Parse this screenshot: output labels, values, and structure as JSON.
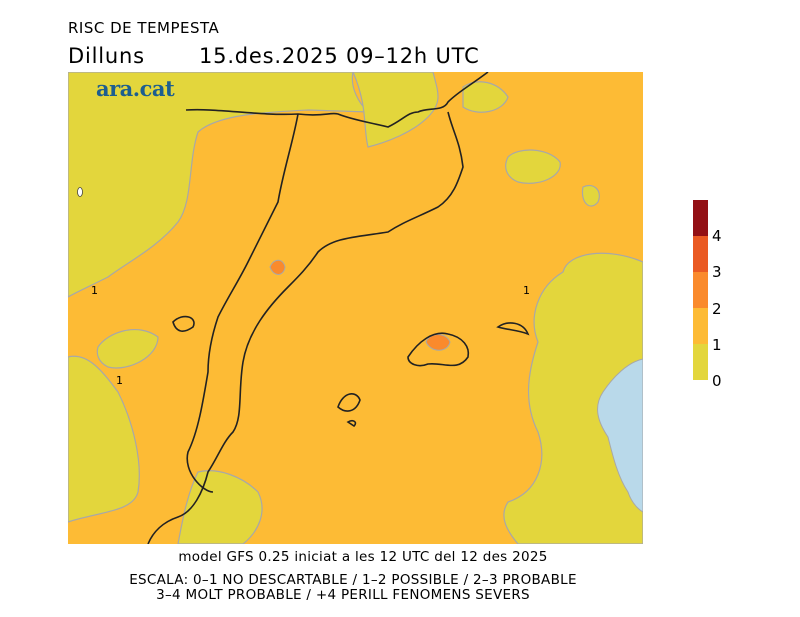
{
  "title": "RISC DE TEMPESTA",
  "day": "Dilluns",
  "date_range": "15.des.2025 09–12h UTC",
  "logo": "ara.cat",
  "contour_labels": [
    "1",
    "1",
    "1"
  ],
  "legend": {
    "ticks": [
      "0",
      "1",
      "2",
      "3",
      "4"
    ],
    "colors": [
      "#e3d63c",
      "#fdbb35",
      "#fa8a2c",
      "#ea5a23",
      "#931015"
    ]
  },
  "colors": {
    "sea": "#b9d9ea",
    "coast": "#222222",
    "contour": "#a8a8a8"
  },
  "footer": {
    "model": "model GFS 0.25 iniciat a les 12 UTC del 12 des 2025",
    "scale_line1": "ESCALA: 0–1 NO DESCARTABLE / 1–2 POSSIBLE / 2–3 PROBABLE",
    "scale_line2": "3–4 MOLT PROBABLE / +4 PERILL FENOMENS SEVERS"
  }
}
